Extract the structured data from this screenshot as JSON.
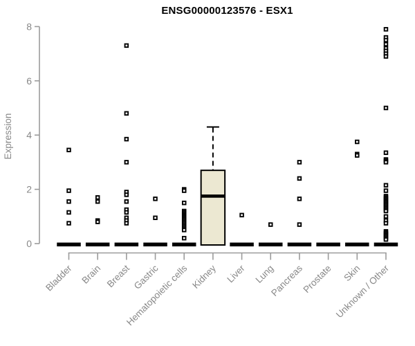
{
  "colors": {
    "background": "#ffffff",
    "axis_line": "#9b9b9b",
    "axis_text": "#888888",
    "title_text": "#000000",
    "box_fill": "#ece8d2",
    "box_stroke": "#000000",
    "point_stroke": "#000000",
    "point_fill": "#ffffff"
  },
  "chart_data": {
    "type": "boxplot",
    "title": "ENSG00000123576 - ESX1",
    "xlabel": "",
    "ylabel": "Expression",
    "ylim": [
      0,
      8
    ],
    "yticks": [
      0,
      2,
      4,
      6,
      8
    ],
    "grid": false,
    "legend": "none",
    "categories": [
      "Bladder",
      "Brain",
      "Breast",
      "Gastric",
      "Hematopoietic cells",
      "Kidney",
      "Liver",
      "Lung",
      "Pancreas",
      "Prostate",
      "Skin",
      "Unknown / Other"
    ],
    "series": [
      {
        "name": "Bladder",
        "box": {
          "min": 0,
          "q1": 0,
          "median": 0,
          "q3": 0,
          "max": 0
        },
        "outliers": [
          3.45,
          1.95,
          1.55,
          1.15,
          0.75
        ]
      },
      {
        "name": "Brain",
        "box": {
          "min": 0,
          "q1": 0,
          "median": 0,
          "q3": 0,
          "max": 0
        },
        "outliers": [
          1.7,
          1.55,
          0.85,
          0.8
        ]
      },
      {
        "name": "Breast",
        "box": {
          "min": 0,
          "q1": 0,
          "median": 0,
          "q3": 0,
          "max": 0
        },
        "outliers": [
          7.3,
          4.8,
          3.85,
          3.0,
          1.9,
          1.8,
          1.55,
          1.25,
          1.15,
          0.95,
          0.85,
          0.75
        ]
      },
      {
        "name": "Gastric",
        "box": {
          "min": 0,
          "q1": 0,
          "median": 0,
          "q3": 0,
          "max": 0
        },
        "outliers": [
          1.65,
          0.95
        ]
      },
      {
        "name": "Hematopoietic cells",
        "box": {
          "min": 0,
          "q1": 0,
          "median": 0,
          "q3": 0,
          "max": 0
        },
        "outliers": [
          2.0,
          1.95,
          1.5,
          1.2,
          1.15,
          1.1,
          1.05,
          1.0,
          0.95,
          0.9,
          0.85,
          0.8,
          0.75,
          0.7,
          0.65,
          0.6,
          0.55,
          0.5,
          0.2
        ]
      },
      {
        "name": "Kidney",
        "box": {
          "min": 0,
          "q1": 0,
          "median": 1.75,
          "q3": 2.7,
          "max": 4.3
        },
        "outliers": []
      },
      {
        "name": "Liver",
        "box": {
          "min": 0,
          "q1": 0,
          "median": 0,
          "q3": 0,
          "max": 0
        },
        "outliers": [
          1.05
        ]
      },
      {
        "name": "Lung",
        "box": {
          "min": 0,
          "q1": 0,
          "median": 0,
          "q3": 0,
          "max": 0
        },
        "outliers": [
          0.7
        ]
      },
      {
        "name": "Pancreas",
        "box": {
          "min": 0,
          "q1": 0,
          "median": 0,
          "q3": 0,
          "max": 0
        },
        "outliers": [
          3.0,
          2.4,
          1.65,
          0.7
        ]
      },
      {
        "name": "Prostate",
        "box": {
          "min": 0,
          "q1": 0,
          "median": 0,
          "q3": 0,
          "max": 0
        },
        "outliers": []
      },
      {
        "name": "Skin",
        "box": {
          "min": 0,
          "q1": 0,
          "median": 0,
          "q3": 0,
          "max": 0
        },
        "outliers": [
          3.75,
          3.3,
          3.25
        ]
      },
      {
        "name": "Unknown / Other",
        "box": {
          "min": 0,
          "q1": 0,
          "median": 0,
          "q3": 0,
          "max": 0
        },
        "outliers": [
          7.9,
          7.6,
          7.5,
          7.35,
          7.2,
          7.1,
          7.0,
          6.9,
          5.0,
          3.35,
          3.1,
          3.05,
          3.0,
          2.15,
          1.95,
          1.75,
          1.7,
          1.65,
          1.6,
          1.55,
          1.5,
          1.45,
          1.4,
          1.35,
          1.3,
          1.25,
          1.2,
          1.0,
          0.85,
          0.75,
          0.45,
          0.4,
          0.35,
          0.3,
          0.25,
          0.2,
          0.15
        ]
      }
    ]
  }
}
